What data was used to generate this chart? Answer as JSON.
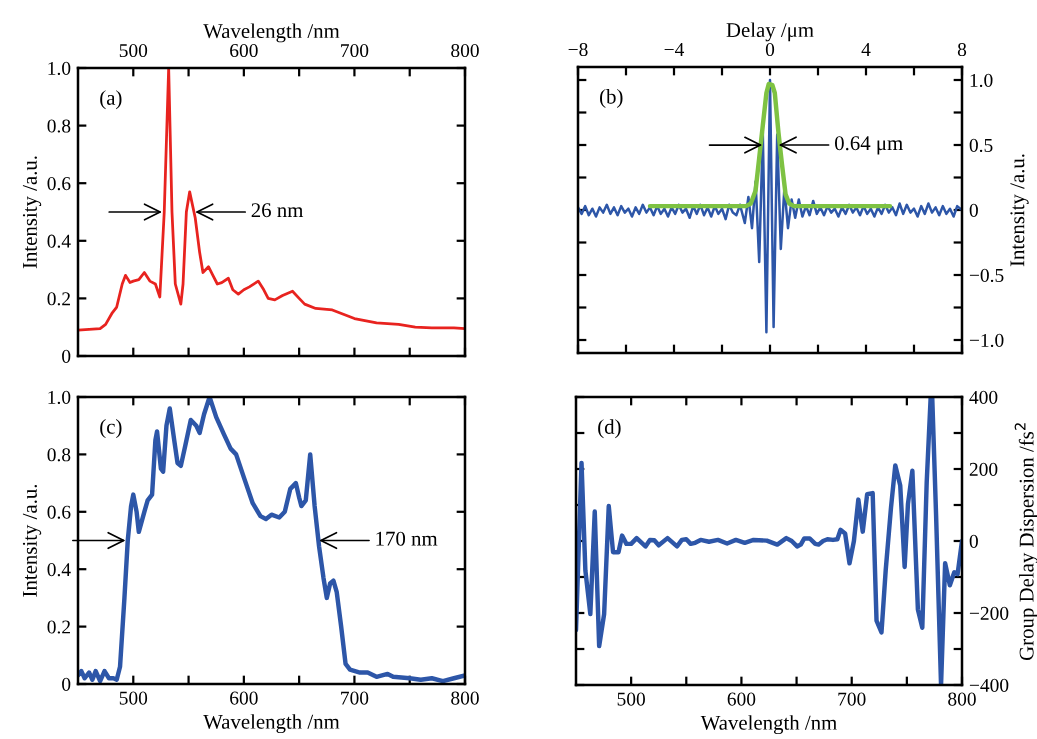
{
  "chart_data": [
    {
      "type": "line",
      "series": [
        {
          "color": "#e8231f",
          "x": [
            450,
            470,
            475,
            481,
            485,
            490,
            493,
            497,
            500,
            505,
            510,
            515,
            520,
            524,
            528,
            532,
            535,
            538,
            543,
            545,
            548,
            551,
            556,
            560,
            563,
            568,
            572,
            576,
            580,
            586,
            590,
            595,
            600,
            605,
            613,
            618,
            622,
            628,
            635,
            644,
            650,
            655,
            665,
            680,
            690,
            700,
            720,
            740,
            755,
            770,
            790,
            800
          ],
          "values": [
            0.09,
            0.095,
            0.11,
            0.15,
            0.17,
            0.25,
            0.28,
            0.255,
            0.26,
            0.265,
            0.29,
            0.26,
            0.25,
            0.205,
            0.5,
            1.0,
            0.5,
            0.25,
            0.18,
            0.25,
            0.5,
            0.57,
            0.48,
            0.36,
            0.29,
            0.31,
            0.28,
            0.25,
            0.255,
            0.27,
            0.23,
            0.215,
            0.23,
            0.24,
            0.26,
            0.23,
            0.2,
            0.195,
            0.21,
            0.225,
            0.2,
            0.18,
            0.165,
            0.16,
            0.145,
            0.13,
            0.115,
            0.11,
            0.1,
            0.098,
            0.098,
            0.095
          ]
        }
      ],
      "xlim": [
        450,
        800
      ],
      "xticks": [
        500,
        {
          "value": 550,
          "label": null
        },
        600,
        {
          "value": 650,
          "label": null
        },
        700,
        {
          "value": 750,
          "label": null
        },
        800
      ],
      "x2label": "Wavelength /nm",
      "ylim": [
        0,
        1
      ],
      "yticks": [
        0,
        0.2,
        0.4,
        0.6,
        0.8,
        {
          "value": 1,
          "label": "1.0"
        }
      ],
      "ylabel": "Intensity /a.u.",
      "annotations": [
        "(a)",
        {
          "text": "26 nm",
          "x": 556,
          "y": 0.5
        }
      ]
    },
    {
      "type": "line",
      "series": [
        {
          "color": "#2d56a8",
          "x": [
            -8,
            -7.85,
            -7.7,
            -7.55,
            -7.4,
            -7.25,
            -7.1,
            -6.95,
            -6.8,
            -6.65,
            -6.5,
            -6.35,
            -6.2,
            -6.05,
            -5.9,
            -5.75,
            -5.6,
            -5.45,
            -5.3,
            -5.15,
            -5.0,
            -4.85,
            -4.7,
            -4.55,
            -4.4,
            -4.25,
            -4.1,
            -3.95,
            -3.8,
            -3.65,
            -3.5,
            -3.35,
            -3.2,
            -3.05,
            -2.9,
            -2.75,
            -2.6,
            -2.45,
            -2.3,
            -2.15,
            -2.0,
            -1.85,
            -1.7,
            -1.55,
            -1.4,
            -1.25,
            -1.05,
            -0.9,
            -0.75,
            -0.6,
            -0.45,
            -0.3,
            -0.15,
            0,
            0.15,
            0.3,
            0.45,
            0.6,
            0.75,
            0.9,
            1.05,
            1.2,
            1.35,
            1.5,
            1.65,
            1.8,
            1.95,
            2.1,
            2.25,
            2.4,
            2.55,
            2.7,
            2.85,
            3.0,
            3.15,
            3.3,
            3.45,
            3.6,
            3.75,
            3.9,
            4.05,
            4.2,
            4.35,
            4.5,
            4.65,
            4.8,
            4.95,
            5.1,
            5.25,
            5.4,
            5.55,
            5.7,
            5.85,
            6.0,
            6.15,
            6.3,
            6.45,
            6.6,
            6.75,
            6.9,
            7.05,
            7.2,
            7.35,
            7.5,
            7.65,
            7.8,
            8.0
          ],
          "values": [
            0.02,
            -0.03,
            0.03,
            -0.04,
            0.01,
            -0.05,
            0.02,
            -0.02,
            0.04,
            -0.03,
            0.02,
            -0.04,
            0.03,
            -0.02,
            0.01,
            -0.05,
            0.02,
            -0.03,
            0.04,
            -0.02,
            0.02,
            -0.04,
            0.03,
            -0.03,
            0.01,
            -0.05,
            0.02,
            -0.03,
            0.04,
            -0.02,
            0.01,
            -0.06,
            0.03,
            -0.03,
            0.04,
            -0.04,
            0.02,
            -0.05,
            0.03,
            -0.03,
            0.01,
            -0.07,
            0.04,
            -0.02,
            -0.04,
            0.04,
            -0.1,
            0.1,
            -0.14,
            0.22,
            -0.4,
            0.6,
            -0.94,
            1.0,
            -0.9,
            0.58,
            -0.3,
            0.17,
            -0.14,
            0.08,
            -0.06,
            0.08,
            -0.05,
            0.03,
            -0.04,
            0.07,
            -0.03,
            0.02,
            -0.04,
            0.03,
            -0.02,
            0.01,
            -0.05,
            0.02,
            -0.03,
            0.04,
            -0.02,
            0.02,
            -0.04,
            0.03,
            -0.03,
            0.01,
            -0.05,
            0.02,
            -0.03,
            0.04,
            -0.02,
            0.02,
            -0.04,
            0.05,
            -0.03,
            0.04,
            -0.02,
            0.01,
            -0.05,
            0.03,
            -0.03,
            0.05,
            -0.02,
            0.02,
            -0.04,
            0.03,
            -0.03,
            0.01,
            -0.05,
            0.03,
            0.0
          ]
        },
        {
          "color": "#7ec242",
          "x": [
            -5,
            -1,
            -0.8,
            -0.6,
            -0.45,
            -0.3,
            -0.15,
            -0.05,
            0.1,
            0.2,
            0.35,
            0.5,
            0.65,
            0.8,
            1.0,
            5
          ],
          "values": [
            0.03,
            0.03,
            0.05,
            0.15,
            0.4,
            0.65,
            0.9,
            0.97,
            0.96,
            0.9,
            0.6,
            0.35,
            0.12,
            0.05,
            0.03,
            0.03
          ]
        }
      ],
      "xlim": [
        -8,
        8
      ],
      "xticks": [
        {
          "value": -8,
          "label": "−8"
        },
        {
          "value": -6,
          "label": null
        },
        {
          "value": -4,
          "label": "−4"
        },
        {
          "value": -2,
          "label": null
        },
        0,
        {
          "value": 2,
          "label": null
        },
        4,
        {
          "value": 6,
          "label": null
        },
        8
      ],
      "x2label": "Delay /μm",
      "ylim": [
        -1.1,
        1.1
      ],
      "yticks": [
        {
          "value": 1.0,
          "label": "1.0"
        },
        {
          "value": 0.75,
          "label": null
        },
        0.5,
        {
          "value": 0.25,
          "label": null
        },
        0,
        {
          "value": -0.25,
          "label": null
        },
        {
          "value": -0.5,
          "label": "−0.5"
        },
        {
          "value": -0.75,
          "label": null
        },
        {
          "value": -1.0,
          "label": "−1.0"
        }
      ],
      "y2label": "Intensity /a.u.",
      "annotations": [
        "(b)",
        {
          "text": "0.64 μm",
          "x": 0.36,
          "y": 0.5
        }
      ]
    },
    {
      "type": "line",
      "series": [
        {
          "color": "#2d56a8",
          "x": [
            450,
            453,
            456,
            460,
            463,
            466,
            470,
            474,
            478,
            482,
            485,
            488,
            492,
            495,
            498,
            500,
            503,
            505,
            510,
            513,
            517,
            520,
            521.5,
            525,
            527,
            530,
            533,
            537,
            540,
            543,
            547,
            552,
            557,
            560,
            564,
            569,
            575,
            582,
            588,
            593,
            600,
            608,
            615,
            620,
            625,
            632,
            637,
            642,
            647,
            650,
            652,
            656,
            660,
            664,
            668,
            672,
            675,
            678,
            681,
            684,
            688,
            692,
            696,
            705,
            712,
            720,
            730,
            735,
            750,
            760,
            770,
            780,
            790,
            800
          ],
          "values": [
            0.03,
            0.045,
            0.02,
            0.04,
            0.015,
            0.045,
            0.01,
            0.045,
            0.02,
            0.02,
            0.015,
            0.06,
            0.3,
            0.5,
            0.62,
            0.66,
            0.6,
            0.53,
            0.6,
            0.64,
            0.66,
            0.85,
            0.88,
            0.75,
            0.74,
            0.9,
            0.96,
            0.85,
            0.77,
            0.76,
            0.83,
            0.92,
            0.9,
            0.875,
            0.94,
            1.0,
            0.93,
            0.87,
            0.82,
            0.8,
            0.72,
            0.63,
            0.585,
            0.575,
            0.59,
            0.58,
            0.6,
            0.68,
            0.7,
            0.65,
            0.62,
            0.64,
            0.8,
            0.62,
            0.48,
            0.37,
            0.3,
            0.35,
            0.36,
            0.32,
            0.2,
            0.07,
            0.05,
            0.04,
            0.04,
            0.025,
            0.035,
            0.025,
            0.02,
            0.015,
            0.02,
            0.01,
            0.02,
            0.03
          ]
        }
      ],
      "xlim": [
        450,
        800
      ],
      "xticks": [
        500,
        {
          "value": 550,
          "label": null
        },
        600,
        {
          "value": 650,
          "label": null
        },
        700,
        {
          "value": 750,
          "label": null
        },
        800
      ],
      "xlabel": "Wavelength /nm",
      "ylim": [
        0,
        1
      ],
      "yticks": [
        0,
        0.2,
        0.4,
        0.6,
        0.8,
        {
          "value": 1,
          "label": "1.0"
        }
      ],
      "ylabel": "Intensity /a.u.",
      "annotations": [
        "(c)",
        {
          "text": "170 nm",
          "x": 668,
          "y": 0.5
        }
      ]
    },
    {
      "type": "line",
      "series": [
        {
          "color": "#2d56a8",
          "axis": "y2",
          "x": [
            450,
            455,
            458.5,
            463,
            467,
            471,
            475.5,
            479.7,
            483.6,
            488.5,
            491.8,
            495.7,
            500,
            505,
            513,
            517,
            521,
            525,
            533,
            541.6,
            546,
            550,
            554,
            558,
            563,
            570.6,
            578.7,
            587,
            595,
            603,
            611,
            623,
            632.5,
            640.7,
            645.6,
            650.5,
            653.8,
            657,
            662,
            667,
            670,
            674,
            678,
            683,
            687,
            689.8,
            694,
            698,
            702,
            706,
            710,
            714,
            719,
            722.5,
            727,
            730.8,
            735.6,
            739.5,
            744,
            748,
            751,
            755,
            760,
            764,
            768,
            771.6,
            773,
            776.5,
            781,
            784.7,
            789,
            793,
            796,
            800
          ],
          "values": [
            -248,
            217,
            -82,
            -203,
            82,
            -292,
            -203,
            97,
            -31,
            -31,
            15,
            -8,
            -8,
            8,
            -15,
            3,
            2,
            -12,
            8,
            -15,
            3,
            5,
            -8,
            -5,
            3,
            -2,
            3,
            -7,
            3,
            -5,
            3,
            1,
            -10,
            8,
            0,
            -15,
            -10,
            7,
            7,
            -8,
            -10,
            0,
            5,
            3,
            5,
            31,
            21,
            -62,
            0,
            115,
            26,
            130,
            133,
            -221,
            -254,
            -82,
            92,
            210,
            154,
            -72,
            103,
            195,
            -190,
            -241,
            164,
            400,
            400,
            72,
            -400,
            -62,
            -123,
            -87,
            -92,
            0
          ]
        }
      ],
      "xlim": [
        450,
        800
      ],
      "xticks": [
        500,
        {
          "value": 550,
          "label": null
        },
        600,
        {
          "value": 650,
          "label": null
        },
        700,
        {
          "value": 750,
          "label": null
        },
        800
      ],
      "xlabel": "Wavelength /nm",
      "y2lim": [
        -400,
        400
      ],
      "y2ticks": [
        400,
        {
          "value": 300,
          "label": null
        },
        200,
        {
          "value": 100,
          "label": null
        },
        0,
        {
          "value": -100,
          "label": null
        },
        {
          "value": -200,
          "label": "−200"
        },
        {
          "value": -300,
          "label": null
        },
        {
          "value": -400,
          "label": "−400"
        }
      ],
      "y2label": "Group Delay Dispersion /fs$^{2}$",
      "annotations": [
        "(d)"
      ]
    }
  ]
}
